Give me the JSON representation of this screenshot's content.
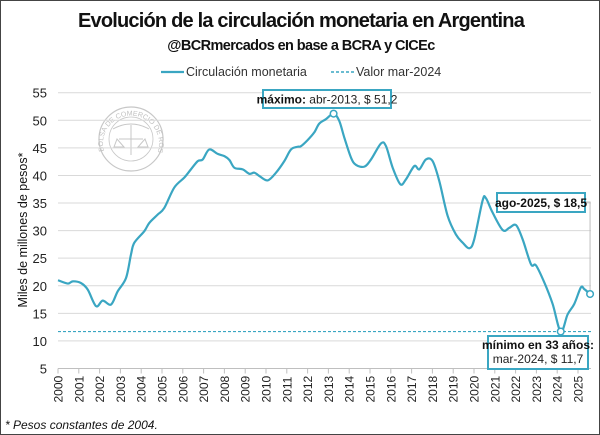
{
  "colors": {
    "series": "#3AA6C2",
    "grid": "#D9D9D9",
    "annotation_border": "#3AA6C2",
    "seal": "#9A9A9A"
  },
  "logo_text": "BOLSA DE COMERCIO DE ROSARIO",
  "footnote": "* Pesos constantes de 2004.",
  "chart_data": {
    "type": "line",
    "title": "Evolución de la circulación monetaria en Argentina",
    "subtitle": "@BCRmercados en base a BCRA y CICEc",
    "ylabel": "Miles de millones de pesos*",
    "xlabel": "",
    "ylim": [
      5,
      55
    ],
    "yticks": [
      5,
      10,
      15,
      20,
      25,
      30,
      35,
      40,
      45,
      50,
      55
    ],
    "xlim": [
      2000,
      2025.6
    ],
    "xticks": [
      "2000",
      "2001",
      "2002",
      "2003",
      "2004",
      "2005",
      "2006",
      "2007",
      "2008",
      "2009",
      "2010",
      "2011",
      "2012",
      "2013",
      "2014",
      "2015",
      "2016",
      "2017",
      "2018",
      "2019",
      "2020",
      "2021",
      "2022",
      "2023",
      "2024",
      "2025"
    ],
    "grid": true,
    "legend_position": "top",
    "series": [
      {
        "name": "Circulación monetaria",
        "style": "solid",
        "x": [
          2000.0,
          2000.47,
          2000.71,
          2001.1,
          2001.43,
          2001.83,
          2002.15,
          2002.55,
          2002.87,
          2003.27,
          2003.51,
          2003.67,
          2004.15,
          2004.39,
          2004.79,
          2005.11,
          2005.59,
          2006.07,
          2006.39,
          2006.72,
          2006.96,
          2007.27,
          2007.68,
          2008.0,
          2008.24,
          2008.48,
          2008.88,
          2009.2,
          2009.44,
          2009.68,
          2010.08,
          2010.48,
          2010.88,
          2011.2,
          2011.52,
          2011.68,
          2012.0,
          2012.32,
          2012.56,
          2012.88,
          2013.25,
          2013.52,
          2013.77,
          2014.09,
          2014.33,
          2014.73,
          2015.05,
          2015.53,
          2015.77,
          2016.09,
          2016.46,
          2016.73,
          2017.13,
          2017.37,
          2017.69,
          2018.01,
          2018.33,
          2018.73,
          2019.13,
          2019.46,
          2019.78,
          2020.01,
          2020.41,
          2020.57,
          2020.89,
          2021.38,
          2021.7,
          2022.02,
          2022.34,
          2022.74,
          2022.98,
          2023.38,
          2023.78,
          2024.17,
          2024.5,
          2024.82,
          2025.14,
          2025.3,
          2025.58
        ],
        "y": [
          21.0,
          20.4,
          20.8,
          20.5,
          19.3,
          16.3,
          17.3,
          16.6,
          19.0,
          21.4,
          25.7,
          27.8,
          29.9,
          31.4,
          32.9,
          34.1,
          37.8,
          39.6,
          41.1,
          42.6,
          42.9,
          44.7,
          43.9,
          43.5,
          42.8,
          41.4,
          41.1,
          40.3,
          40.5,
          39.9,
          39.1,
          40.5,
          42.6,
          44.7,
          45.2,
          45.3,
          46.4,
          47.8,
          49.4,
          50.2,
          51.2,
          49.9,
          46.8,
          43.2,
          41.9,
          41.6,
          42.9,
          45.8,
          45.3,
          41.4,
          38.4,
          39.3,
          41.7,
          41.1,
          42.9,
          42.6,
          39.0,
          32.7,
          29.3,
          27.8,
          26.8,
          28.4,
          35.4,
          35.9,
          33.3,
          30.1,
          30.5,
          31.0,
          28.4,
          23.9,
          23.7,
          20.6,
          16.7,
          11.7,
          14.8,
          16.7,
          19.7,
          19.4,
          18.5
        ]
      },
      {
        "name": "Valor mar-2024",
        "style": "dashed",
        "y_constant": 11.7
      }
    ],
    "annotations": [
      {
        "label_bold": "máximo:",
        "label": " abr-2013, $ 51,2",
        "x": 2013.25,
        "y": 51.2
      },
      {
        "label_bold": "ago-2025, $ 18,5",
        "label": "",
        "x": 2025.58,
        "y": 18.5
      },
      {
        "label_bold": "mínimo en 33 años:",
        "label": "mar-2024, $ 11,7",
        "x": 2024.17,
        "y": 11.7
      }
    ]
  }
}
